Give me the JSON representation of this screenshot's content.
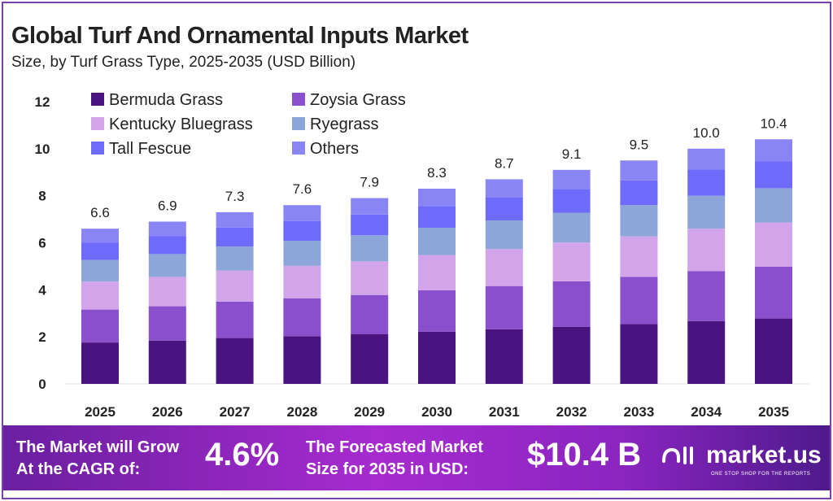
{
  "chart_data": {
    "type": "bar",
    "stacked": true,
    "title": "Global Turf And Ornamental Inputs Market",
    "subtitle": "Size, by Turf Grass Type, 2025-2035 (USD Billion)",
    "categories": [
      "2025",
      "2026",
      "2027",
      "2028",
      "2029",
      "2030",
      "2031",
      "2032",
      "2033",
      "2034",
      "2035"
    ],
    "totals": [
      "6.6",
      "6.9",
      "7.3",
      "7.6",
      "7.9",
      "8.3",
      "8.7",
      "9.1",
      "9.5",
      "10.0",
      "10.4"
    ],
    "ylim": [
      0,
      12
    ],
    "yticks": [
      0,
      2,
      4,
      6,
      8,
      10,
      12
    ],
    "grid": false,
    "legend": "top-left",
    "series": [
      {
        "name": "Bermuda Grass",
        "color": "#4a1480",
        "values": [
          1.76,
          1.84,
          1.95,
          2.03,
          2.11,
          2.22,
          2.32,
          2.43,
          2.54,
          2.67,
          2.78
        ]
      },
      {
        "name": "Zoysia Grass",
        "color": "#8a4fcc",
        "values": [
          1.4,
          1.46,
          1.55,
          1.61,
          1.67,
          1.76,
          1.84,
          1.93,
          2.01,
          2.12,
          2.2
        ]
      },
      {
        "name": "Kentucky Bluegrass",
        "color": "#d2a5ea",
        "values": [
          1.19,
          1.25,
          1.32,
          1.38,
          1.43,
          1.5,
          1.57,
          1.65,
          1.72,
          1.81,
          1.88
        ]
      },
      {
        "name": "Ryegrass",
        "color": "#8ca6d9",
        "values": [
          0.92,
          0.97,
          1.02,
          1.06,
          1.11,
          1.16,
          1.22,
          1.27,
          1.33,
          1.4,
          1.46
        ]
      },
      {
        "name": "Tall Fescue",
        "color": "#6e6bfb",
        "values": [
          0.73,
          0.77,
          0.81,
          0.84,
          0.88,
          0.92,
          0.97,
          1.01,
          1.05,
          1.11,
          1.15
        ]
      },
      {
        "name": "Others",
        "color": "#8a85f5",
        "values": [
          0.6,
          0.61,
          0.65,
          0.68,
          0.7,
          0.74,
          0.78,
          0.81,
          0.85,
          0.89,
          0.93
        ]
      }
    ]
  },
  "banner": {
    "cagr_label_1": "The Market will Grow",
    "cagr_label_2": "At the CAGR of:",
    "cagr_value": "4.6%",
    "size_label_1": "The Forecasted Market",
    "size_label_2": "Size for 2035 in USD:",
    "size_value": "$10.4 B",
    "logo": "market.us",
    "tagline": "ONE STOP SHOP FOR THE REPORTS"
  }
}
